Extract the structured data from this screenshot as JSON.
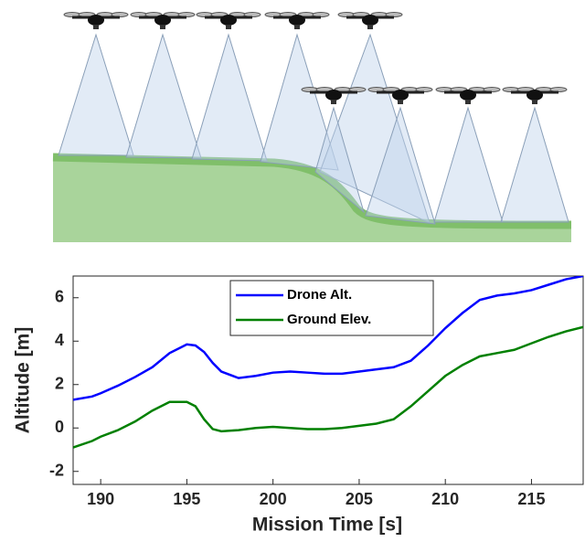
{
  "chart_data": {
    "type": "line",
    "x_label": "Mission Time [s]",
    "y_label": "Altitude [m]",
    "x": [
      188.4,
      189.5,
      190,
      191,
      192,
      193,
      194,
      195,
      195.5,
      196,
      196.5,
      197,
      198,
      199,
      200,
      201,
      202,
      203,
      204,
      205,
      206,
      207,
      208,
      209,
      210,
      211,
      212,
      213,
      214,
      215,
      216,
      217,
      218
    ],
    "series": [
      {
        "name": "Drone Alt.",
        "color": "#0000ff",
        "values": [
          1.3,
          1.45,
          1.6,
          1.95,
          2.35,
          2.8,
          3.45,
          3.85,
          3.8,
          3.5,
          3.0,
          2.6,
          2.3,
          2.4,
          2.55,
          2.6,
          2.55,
          2.5,
          2.5,
          2.6,
          2.7,
          2.8,
          3.1,
          3.8,
          4.6,
          5.3,
          5.9,
          6.1,
          6.2,
          6.35,
          6.6,
          6.85,
          7.0
        ]
      },
      {
        "name": "Ground Elev.",
        "color": "#008000",
        "values": [
          -0.9,
          -0.6,
          -0.4,
          -0.1,
          0.3,
          0.8,
          1.2,
          1.2,
          1.0,
          0.4,
          -0.05,
          -0.15,
          -0.1,
          0.0,
          0.05,
          0.0,
          -0.05,
          -0.05,
          0.0,
          0.1,
          0.2,
          0.4,
          1.0,
          1.7,
          2.4,
          2.9,
          3.3,
          3.45,
          3.6,
          3.9,
          4.2,
          4.45,
          4.65
        ]
      }
    ],
    "xlim": [
      188.4,
      218
    ],
    "ylim": [
      -2.6,
      7
    ],
    "xticks": [
      190,
      195,
      200,
      205,
      210,
      215
    ],
    "yticks": [
      -2,
      0,
      2,
      4,
      6
    ],
    "legend": "upper center",
    "grid": false
  }
}
